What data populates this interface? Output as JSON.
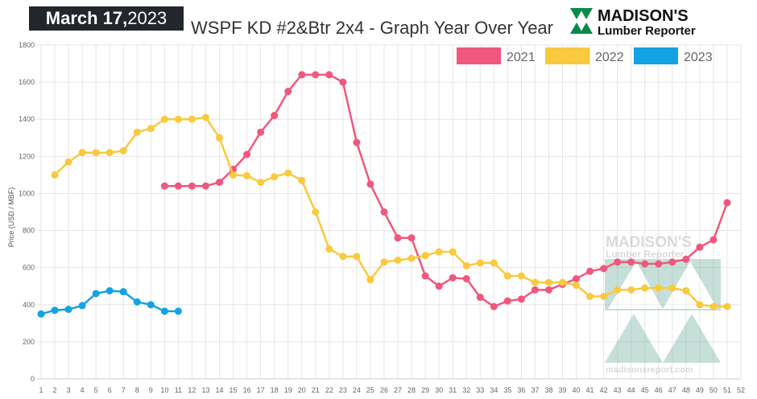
{
  "header": {
    "date_bold": "March 17,",
    "date_year": "2023",
    "title": "WSPF KD #2&Btr 2x4 - Graph Year Over Year",
    "logo_text": [
      "MADISON'S",
      "Lumber Reporter"
    ],
    "watermark_text": [
      "MADISON'S",
      "Lumber Reporter",
      "madisonsreport.com"
    ]
  },
  "chart_data": {
    "type": "line",
    "title": "WSPF KD #2&Btr 2x4 - Graph Year Over Year",
    "xlabel": "",
    "ylabel": "Price (USD / MBF)",
    "xlim": [
      1,
      52
    ],
    "ylim": [
      0,
      1800
    ],
    "yticks": [
      0,
      200,
      400,
      600,
      800,
      1000,
      1200,
      1400,
      1600,
      1800
    ],
    "xticks": [
      1,
      2,
      3,
      4,
      5,
      6,
      7,
      8,
      9,
      10,
      11,
      12,
      13,
      14,
      15,
      16,
      17,
      18,
      19,
      20,
      21,
      22,
      23,
      24,
      25,
      26,
      27,
      28,
      29,
      30,
      31,
      32,
      33,
      34,
      35,
      36,
      37,
      38,
      39,
      40,
      41,
      42,
      43,
      44,
      45,
      46,
      47,
      48,
      49,
      50,
      51,
      52
    ],
    "grid": true,
    "legend_position": "top-right",
    "series": [
      {
        "name": "2021",
        "color": "#f0577e",
        "start_week": 10,
        "values": [
          1040,
          1040,
          1040,
          1040,
          1060,
          1130,
          1210,
          1330,
          1420,
          1550,
          1640,
          1640,
          1640,
          1600,
          1275,
          1050,
          900,
          760,
          760,
          555,
          500,
          545,
          540,
          440,
          390,
          420,
          430,
          480,
          480,
          510,
          540,
          580,
          595,
          630,
          630,
          620,
          620,
          630,
          645,
          710,
          750,
          950
        ]
      },
      {
        "name": "2022",
        "color": "#f9c93e",
        "start_week": 2,
        "values": [
          1100,
          1170,
          1220,
          1220,
          1220,
          1230,
          1330,
          1350,
          1400,
          1400,
          1400,
          1410,
          1300,
          1100,
          1095,
          1060,
          1090,
          1110,
          1070,
          900,
          700,
          660,
          660,
          535,
          630,
          640,
          650,
          665,
          685,
          685,
          610,
          625,
          625,
          555,
          555,
          520,
          520,
          520,
          505,
          445,
          445,
          480,
          480,
          490,
          490,
          490,
          475,
          400,
          390,
          390
        ]
      },
      {
        "name": "2023",
        "color": "#13a3e3",
        "start_week": 1,
        "values": [
          350,
          370,
          375,
          395,
          460,
          475,
          470,
          415,
          400,
          365,
          365
        ]
      }
    ]
  }
}
